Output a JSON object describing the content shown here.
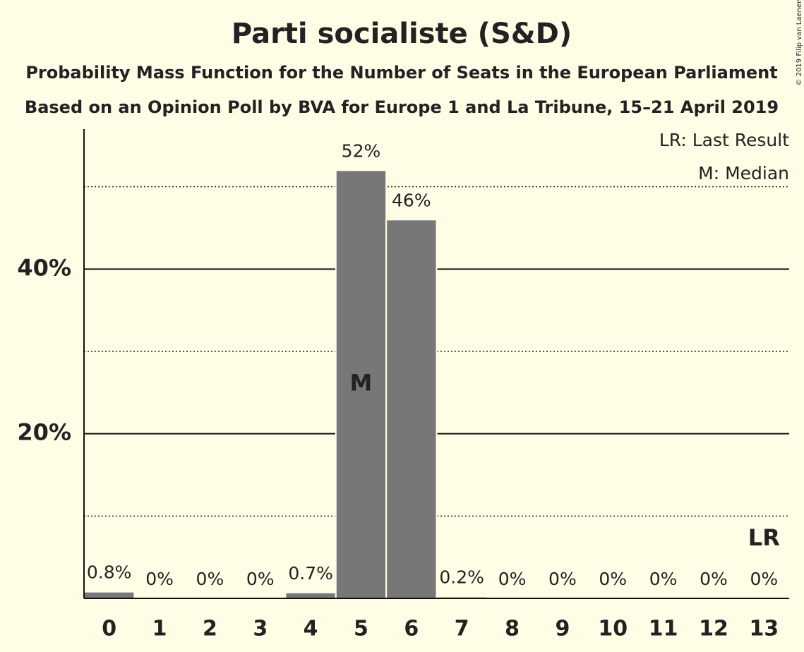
{
  "chart_data": {
    "type": "bar",
    "title": "Parti socialiste (S&D)",
    "subtitle": "Probability Mass Function for the Number of Seats in the European Parliament",
    "subtitle2": "Based on an Opinion Poll by BVA for Europe 1 and La Tribune, 15–21 April 2019",
    "copyright": "© 2019 Filip van Laenen",
    "categories": [
      "0",
      "1",
      "2",
      "3",
      "4",
      "5",
      "6",
      "7",
      "8",
      "9",
      "10",
      "11",
      "12",
      "13"
    ],
    "values": [
      0.8,
      0,
      0,
      0,
      0.7,
      52,
      46,
      0.2,
      0,
      0,
      0,
      0,
      0,
      0
    ],
    "value_labels": [
      "0.8%",
      "0%",
      "0%",
      "0%",
      "0.7%",
      "52%",
      "46%",
      "0.2%",
      "0%",
      "0%",
      "0%",
      "0%",
      "0%",
      "0%"
    ],
    "color": "#777777",
    "ylim": [
      0,
      57
    ],
    "yticks": [
      {
        "value": 20,
        "label": "20%"
      },
      {
        "value": 40,
        "label": "40%"
      }
    ],
    "minor_yticks": [
      10,
      30,
      50
    ],
    "grid": true,
    "legend": [
      "LR: Last Result",
      "M: Median"
    ],
    "median": {
      "index": 5,
      "label": "M"
    },
    "last_result": {
      "index": 13,
      "label": "LR"
    }
  }
}
